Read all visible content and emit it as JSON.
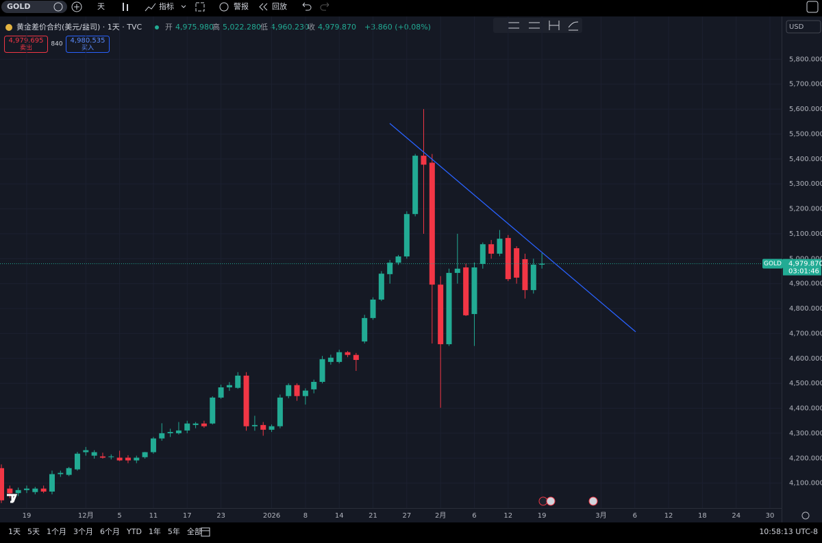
{
  "toolbar": {
    "symbol": "GOLD",
    "interval": "天",
    "indicators": "指标",
    "alert": "警报",
    "replay": "回放"
  },
  "header": {
    "instrument": "黄金差价合约(美元/盎司) · 1天 · TVC",
    "open_label": "开",
    "open": "4,975.980",
    "high_label": "高",
    "high": "5,022.280",
    "low_label": "低",
    "low": "4,960.230",
    "close_label": "收",
    "close": "4,979.870",
    "change": "+3.860 (+0.08%)",
    "sell_price": "4,979.695",
    "sell_label": "卖出",
    "spread": "840",
    "buy_price": "4,980.535",
    "buy_label": "买入",
    "currency": "USD"
  },
  "footer": {
    "ranges": [
      "1天",
      "5天",
      "1个月",
      "3个月",
      "6个月",
      "YTD",
      "1年",
      "5年",
      "全部"
    ],
    "clock": "10:58:13 UTC-8"
  },
  "chart_data": {
    "type": "candlestick",
    "up_color": "#22ab94",
    "down_color": "#f23645",
    "grid": true,
    "categories": [
      null,
      null,
      null,
      "19",
      null,
      null,
      null,
      null,
      null,
      null,
      "12月",
      null,
      null,
      null,
      "5",
      null,
      null,
      null,
      "11",
      null,
      null,
      null,
      "17",
      null,
      null,
      null,
      "23",
      null,
      null,
      null,
      null,
      null,
      "2026",
      null,
      null,
      null,
      "8",
      null,
      null,
      null,
      "14",
      null,
      null,
      null,
      "21",
      null,
      null,
      null,
      "27",
      null,
      null,
      null,
      "2月",
      null,
      null,
      null,
      "6",
      null,
      null,
      null,
      "12",
      null,
      null,
      null,
      "19",
      null,
      null,
      null,
      null,
      null,
      null,
      "3月",
      null,
      null,
      null,
      "6",
      null,
      null,
      null,
      "12",
      null,
      null,
      null,
      "18",
      null,
      null,
      null,
      "24",
      null,
      null,
      null,
      "30"
    ],
    "open": [
      4160,
      4078,
      4060,
      4072,
      4064,
      4078,
      4066,
      4136,
      4133,
      4155,
      4224,
      4210,
      4207,
      4204,
      4202,
      4202,
      4191,
      4204,
      4224,
      4279,
      4300,
      4300,
      4311,
      4333,
      4339,
      4339,
      4443,
      4484,
      4482,
      4531,
      4328,
      4333,
      4314,
      4328,
      4449,
      4493,
      4449,
      4476,
      4506,
      4586,
      4586,
      4625,
      4614,
      4668,
      4762,
      4836,
      4938,
      4984,
      5009,
      5179,
      5413,
      5385,
      4896,
      4657,
      4943,
      4965,
      4778,
      4979,
      5058,
      5020,
      5083,
      5042,
      4998,
      4874,
      4975.98,
      null,
      null,
      null,
      null,
      null,
      null,
      null,
      null,
      null,
      null,
      null,
      null,
      null,
      null,
      null,
      null,
      null,
      null,
      null,
      null,
      null,
      null,
      null,
      null,
      null,
      null,
      null
    ],
    "high": [
      4175,
      4090,
      4082,
      4090,
      4085,
      4090,
      4150,
      4150,
      4165,
      4225,
      4245,
      4232,
      4222,
      4215,
      4230,
      4212,
      4210,
      4225,
      4285,
      4340,
      4318,
      4345,
      4350,
      4345,
      4350,
      4448,
      4495,
      4505,
      4545,
      4545,
      4370,
      4345,
      4335,
      4455,
      4500,
      4500,
      4480,
      4515,
      4610,
      4615,
      4635,
      4630,
      4622,
      4775,
      4845,
      4950,
      4995,
      5015,
      5190,
      5420,
      5600,
      5420,
      4930,
      4960,
      5100,
      4980,
      4985,
      5065,
      5075,
      5115,
      5095,
      5050,
      5020,
      5000,
      5022.28,
      null,
      null,
      null,
      null,
      null,
      null,
      null,
      null,
      null,
      null,
      null,
      null,
      null,
      null,
      null,
      null,
      null,
      null,
      null,
      null,
      null,
      null,
      null,
      null,
      null,
      null,
      null
    ],
    "low": [
      4020,
      4040,
      4048,
      4060,
      4055,
      4060,
      4055,
      4125,
      4128,
      4150,
      4210,
      4198,
      4198,
      4195,
      4188,
      4180,
      4180,
      4198,
      4218,
      4270,
      4285,
      4295,
      4300,
      4320,
      4322,
      4335,
      4438,
      4470,
      4478,
      4310,
      4310,
      4290,
      4305,
      4320,
      4440,
      4430,
      4415,
      4460,
      4500,
      4575,
      4580,
      4605,
      4550,
      4660,
      4755,
      4830,
      4900,
      4975,
      5000,
      5170,
      5100,
      4660,
      4402,
      4650,
      4900,
      4770,
      4650,
      4960,
      5000,
      5010,
      4910,
      4900,
      4840,
      4860,
      4960.23,
      null,
      null,
      null,
      null,
      null,
      null,
      null,
      null,
      null,
      null,
      null,
      null,
      null,
      null,
      null,
      null,
      null,
      null,
      null,
      null,
      null,
      null,
      null,
      null,
      null,
      null,
      null
    ],
    "close": [
      4031,
      4059,
      4072,
      4078,
      4078,
      4066,
      4136,
      4141,
      4160,
      4218,
      4232,
      4224,
      4202,
      4207,
      4191,
      4191,
      4202,
      4224,
      4279,
      4300,
      4305,
      4311,
      4339,
      4339,
      4328,
      4443,
      4484,
      4493,
      4531,
      4328,
      4333,
      4314,
      4328,
      4443,
      4493,
      4449,
      4471,
      4506,
      4597,
      4603,
      4625,
      4614,
      4594,
      4762,
      4836,
      4940,
      4984,
      5009,
      5179,
      5413,
      5377,
      4896,
      4657,
      4943,
      4960,
      4773,
      4965,
      5058,
      5020,
      5080,
      4918,
      4924,
      4874,
      4976,
      4979.87,
      null,
      null,
      null,
      null,
      null,
      null,
      null,
      null,
      null,
      null,
      null,
      null,
      null,
      null,
      null,
      null,
      null,
      null,
      null,
      null,
      null,
      null,
      null,
      null,
      null,
      null,
      null
    ],
    "ylim": [
      4000,
      5900
    ],
    "yticks": [
      {
        "value": 4100,
        "label": "4,100.000"
      },
      {
        "value": 4200,
        "label": "4,200.000"
      },
      {
        "value": 4300,
        "label": "4,300.000"
      },
      {
        "value": 4400,
        "label": "4,400.000"
      },
      {
        "value": 4500,
        "label": "4,500.000"
      },
      {
        "value": 4600,
        "label": "4,600.000"
      },
      {
        "value": 4700,
        "label": "4,700.000"
      },
      {
        "value": 4800,
        "label": "4,800.000"
      },
      {
        "value": 4900,
        "label": "4,900.000"
      },
      {
        "value": 5000,
        "label": "5,000.000"
      },
      {
        "value": 5100,
        "label": "5,100.000"
      },
      {
        "value": 5200,
        "label": "5,200.000"
      },
      {
        "value": 5300,
        "label": "5,300.000"
      },
      {
        "value": 5400,
        "label": "5,400.000"
      },
      {
        "value": 5500,
        "label": "5,500.000"
      },
      {
        "value": 5600,
        "label": "5,600.000"
      },
      {
        "value": 5700,
        "label": "5,700.000"
      },
      {
        "value": 5800,
        "label": "5,800.000"
      }
    ],
    "last_price": {
      "value": 4979.87,
      "label": "4,979.870"
    },
    "last_symbol": "GOLD",
    "countdown": "03:01:46"
  }
}
